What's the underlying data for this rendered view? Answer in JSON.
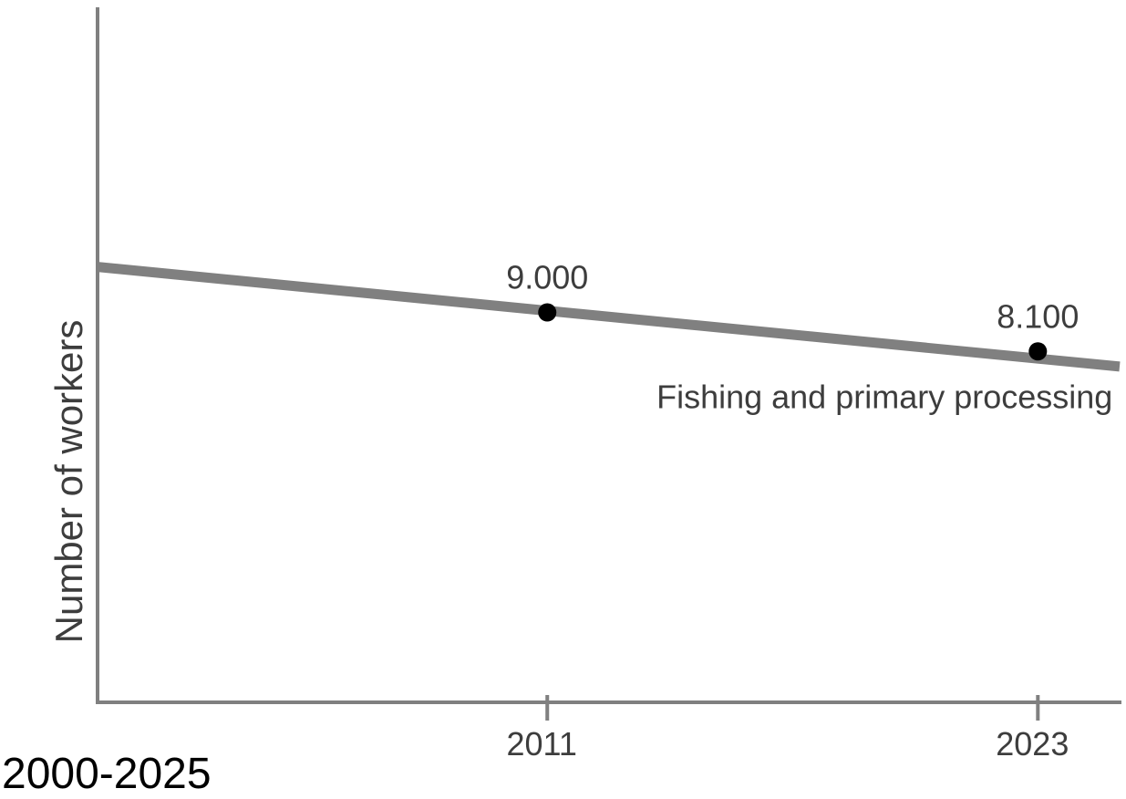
{
  "chart_data": {
    "type": "line",
    "title": "",
    "xlabel": "",
    "ylabel": "Number of workers",
    "caption": "2000-2025",
    "xlim": [
      2000,
      2025
    ],
    "ylim": [
      0,
      16000
    ],
    "x_ticks": [
      {
        "value": 2011,
        "label": "2011"
      },
      {
        "value": 2023,
        "label": "2023"
      }
    ],
    "series": [
      {
        "name": "Fishing and primary processing",
        "trend": {
          "x": [
            2000,
            2025
          ],
          "y": [
            10050,
            7750
          ]
        },
        "points": [
          {
            "x": 2011,
            "y": 9000,
            "label": "9.000"
          },
          {
            "x": 2023,
            "y": 8100,
            "label": "8.100"
          }
        ]
      }
    ],
    "grid": false,
    "legend": "none",
    "colors": {
      "axis": "#808080",
      "line": "#808080",
      "point": "#000000",
      "text": "#3d3d3d"
    }
  }
}
